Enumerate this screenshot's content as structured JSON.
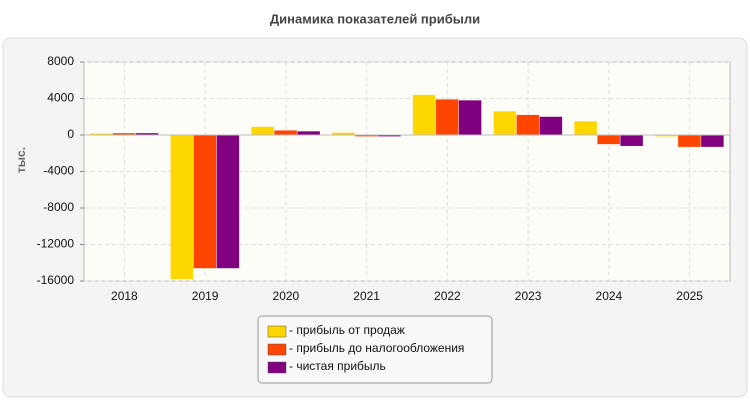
{
  "chart_data": {
    "type": "bar",
    "title": "Динамика показателей прибыли",
    "y_label": "тыс.",
    "categories": [
      "2018",
      "2019",
      "2020",
      "2021",
      "2022",
      "2023",
      "2024",
      "2025"
    ],
    "series": [
      {
        "name": "- прибыль от продаж",
        "color": "#ffd700",
        "values": [
          150,
          -15800,
          900,
          250,
          4400,
          2600,
          1500,
          -150
        ]
      },
      {
        "name": "- прибыль до налогообложения",
        "color": "#ff4500",
        "values": [
          200,
          -14600,
          500,
          -150,
          3900,
          2200,
          -1000,
          -1300
        ]
      },
      {
        "name": "- чистая прибыль",
        "color": "#800080",
        "values": [
          200,
          -14600,
          400,
          -150,
          3800,
          2000,
          -1200,
          -1300
        ]
      }
    ],
    "ylim": [
      -16000,
      8000
    ],
    "yticks": [
      -16000,
      -12000,
      -8000,
      -4000,
      0,
      4000,
      8000
    ],
    "grid": true
  }
}
